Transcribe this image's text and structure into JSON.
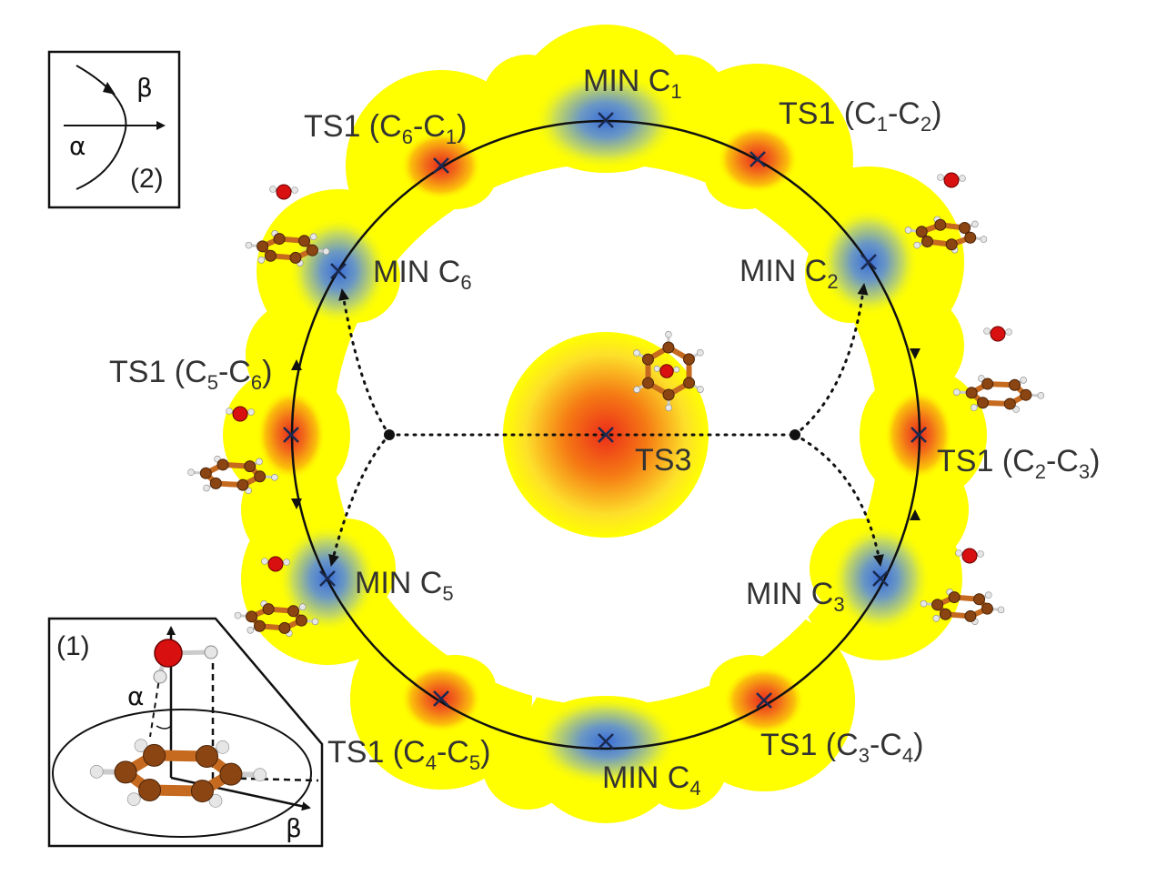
{
  "diagram": {
    "center_label": {
      "text": "TS3"
    },
    "minima": [
      {
        "main": "MIN C",
        "sub": "1"
      },
      {
        "main": "MIN C",
        "sub": "2"
      },
      {
        "main": "MIN C",
        "sub": "3"
      },
      {
        "main": "MIN C",
        "sub": "4"
      },
      {
        "main": "MIN C",
        "sub": "5"
      },
      {
        "main": "MIN C",
        "sub": "6"
      }
    ],
    "transition_states": [
      {
        "p": "TS1 (C",
        "s1": "1",
        "m": "-C",
        "s2": "2",
        "e": ")"
      },
      {
        "p": "TS1 (C",
        "s1": "2",
        "m": "-C",
        "s2": "3",
        "e": ")"
      },
      {
        "p": "TS1 (C",
        "s1": "3",
        "m": "-C",
        "s2": "4",
        "e": ")"
      },
      {
        "p": "TS1 (C",
        "s1": "4",
        "m": "-C",
        "s2": "5",
        "e": ")"
      },
      {
        "p": "TS1 (C",
        "s1": "5",
        "m": "-C",
        "s2": "6",
        "e": ")"
      },
      {
        "p": "TS1 (C",
        "s1": "6",
        "m": "-C",
        "s2": "1",
        "e": ")"
      }
    ],
    "inset2": {
      "alpha": "α",
      "beta": "β",
      "label": "(2)"
    },
    "inset1": {
      "label": "(1)",
      "alpha": "α",
      "beta": "β"
    },
    "colors": {
      "high_energy": "#e8291c",
      "mid_energy": "#ff8c00",
      "low_energy": "#3a6fd8",
      "base": "#ffff00",
      "oxygen": "#d81010",
      "carbon": "#8b4513",
      "hydrogen": "#e6e6e6"
    }
  }
}
